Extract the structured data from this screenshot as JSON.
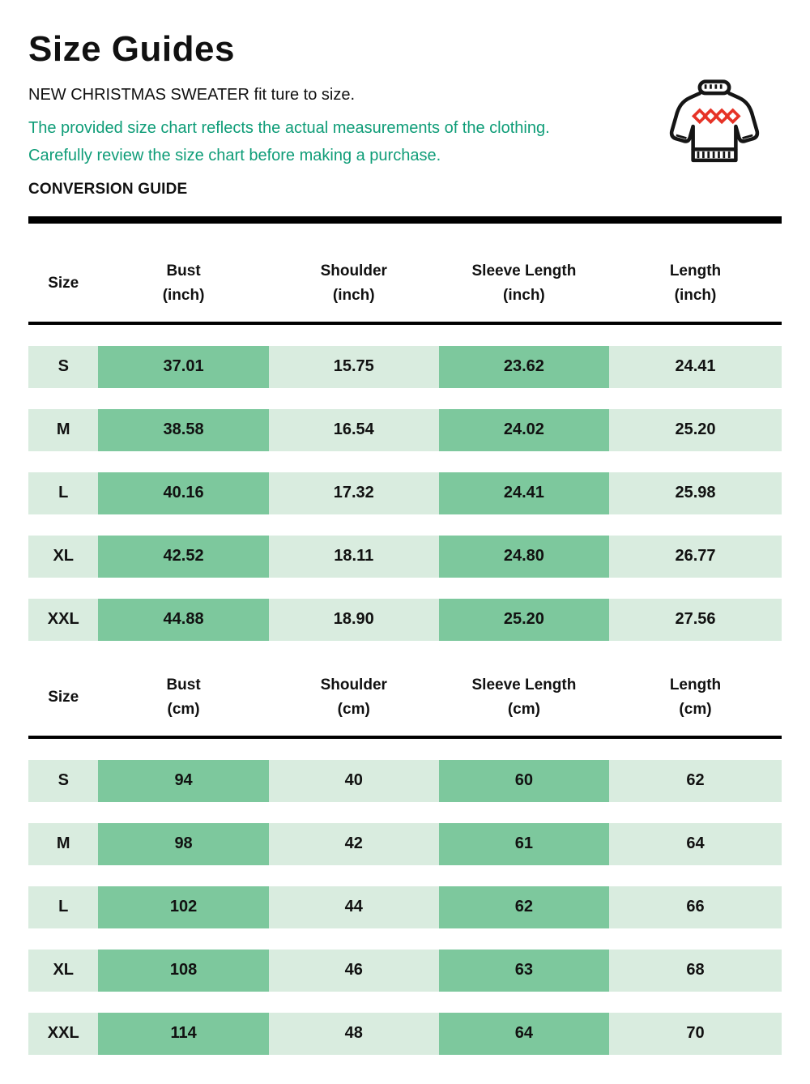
{
  "page": {
    "title": "Size Guides",
    "fit_note_bold": "NEW CHRISTMAS SWEATER",
    "fit_note_rest": " fit ture to size.",
    "description": "The provided size chart reflects the actual measurements of the clothing. Carefully review the size chart before making a purchase.",
    "conversion_label": "CONVERSION GUIDE"
  },
  "colors": {
    "green_text": "#0f9d78",
    "cell_dark": "#7dc89d",
    "cell_light": "#d9ecdf",
    "sweater_red": "#e63327",
    "ink": "#111111"
  },
  "icon": {
    "name": "christmas-sweater-icon"
  },
  "tables": [
    {
      "name": "size-table-inch",
      "headers": [
        {
          "label": "Size",
          "unit": ""
        },
        {
          "label": "Bust",
          "unit": "(inch)"
        },
        {
          "label": "Shoulder",
          "unit": "(inch)"
        },
        {
          "label": "Sleeve Length",
          "unit": "(inch)"
        },
        {
          "label": "Length",
          "unit": "(inch)"
        }
      ],
      "rows": [
        {
          "size": "S",
          "values": [
            "37.01",
            "15.75",
            "23.62",
            "24.41"
          ]
        },
        {
          "size": "M",
          "values": [
            "38.58",
            "16.54",
            "24.02",
            "25.20"
          ]
        },
        {
          "size": "L",
          "values": [
            "40.16",
            "17.32",
            "24.41",
            "25.98"
          ]
        },
        {
          "size": "XL",
          "values": [
            "42.52",
            "18.11",
            "24.80",
            "26.77"
          ]
        },
        {
          "size": "XXL",
          "values": [
            "44.88",
            "18.90",
            "25.20",
            "27.56"
          ]
        }
      ]
    },
    {
      "name": "size-table-cm",
      "headers": [
        {
          "label": "Size",
          "unit": ""
        },
        {
          "label": "Bust",
          "unit": "(cm)"
        },
        {
          "label": "Shoulder",
          "unit": "(cm)"
        },
        {
          "label": "Sleeve Length",
          "unit": "(cm)"
        },
        {
          "label": "Length",
          "unit": "(cm)"
        }
      ],
      "rows": [
        {
          "size": "S",
          "values": [
            "94",
            "40",
            "60",
            "62"
          ]
        },
        {
          "size": "M",
          "values": [
            "98",
            "42",
            "61",
            "64"
          ]
        },
        {
          "size": "L",
          "values": [
            "102",
            "44",
            "62",
            "66"
          ]
        },
        {
          "size": "XL",
          "values": [
            "108",
            "46",
            "63",
            "68"
          ]
        },
        {
          "size": "XXL",
          "values": [
            "114",
            "48",
            "64",
            "70"
          ]
        }
      ]
    }
  ]
}
